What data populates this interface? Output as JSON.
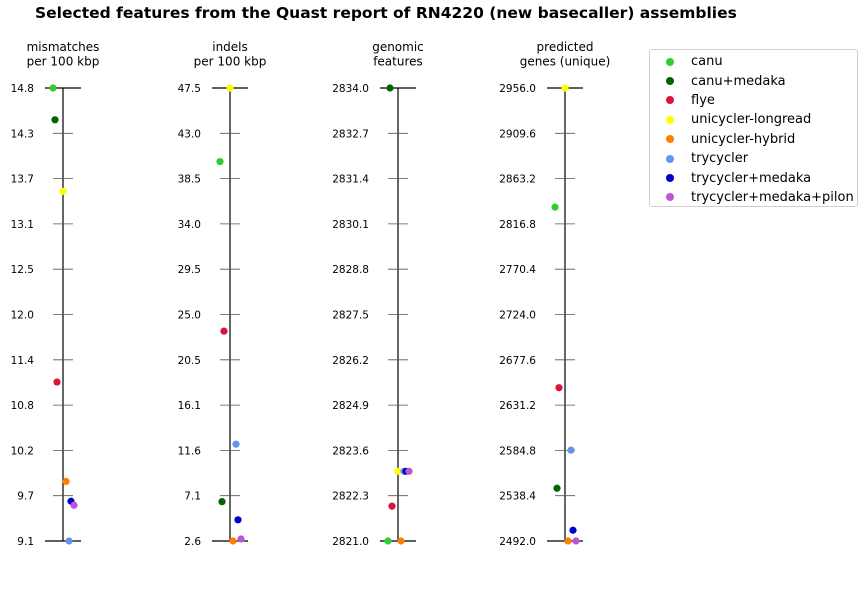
{
  "title": "Selected features from the Quast report of RN4220 (new basecaller) assemblies",
  "legend": {
    "items": [
      {
        "name": "canu",
        "color": "#32cd32"
      },
      {
        "name": "canu+medaka",
        "color": "#006400"
      },
      {
        "name": "flye",
        "color": "#dc143c"
      },
      {
        "name": "unicycler-longread",
        "color": "#ffff00"
      },
      {
        "name": "unicycler-hybrid",
        "color": "#ff7f00"
      },
      {
        "name": "trycycler",
        "color": "#6495ed"
      },
      {
        "name": "trycycler+medaka",
        "color": "#0000cd"
      },
      {
        "name": "trycycler+medaka+pilon",
        "color": "#ba55d3"
      }
    ]
  },
  "chart_data": [
    {
      "type": "scatter",
      "title_lines": [
        "mismatches",
        "per 100 kbp"
      ],
      "ylim": [
        9.1,
        14.8
      ],
      "tick_labels": [
        "9.1",
        "9.7",
        "10.2",
        "10.8",
        "11.4",
        "12.0",
        "12.5",
        "13.1",
        "13.7",
        "14.3",
        "14.8"
      ],
      "series": [
        {
          "name": "canu",
          "value": 14.8
        },
        {
          "name": "canu+medaka",
          "value": 14.4
        },
        {
          "name": "flye",
          "value": 11.1
        },
        {
          "name": "unicycler-longread",
          "value": 13.5
        },
        {
          "name": "unicycler-hybrid",
          "value": 9.85
        },
        {
          "name": "trycycler",
          "value": 9.1
        },
        {
          "name": "trycycler+medaka",
          "value": 9.6
        },
        {
          "name": "trycycler+medaka+pilon",
          "value": 9.55
        }
      ]
    },
    {
      "type": "scatter",
      "title_lines": [
        "indels",
        "per 100 kbp"
      ],
      "ylim": [
        2.6,
        47.5
      ],
      "tick_labels": [
        "2.6",
        "7.1",
        "11.6",
        "16.1",
        "20.5",
        "25.0",
        "29.5",
        "34.0",
        "38.5",
        "43.0",
        "47.5"
      ],
      "series": [
        {
          "name": "canu",
          "value": 40.2
        },
        {
          "name": "canu+medaka",
          "value": 6.5
        },
        {
          "name": "flye",
          "value": 23.4
        },
        {
          "name": "unicycler-longread",
          "value": 47.5
        },
        {
          "name": "unicycler-hybrid",
          "value": 2.6
        },
        {
          "name": "trycycler",
          "value": 12.2
        },
        {
          "name": "trycycler+medaka",
          "value": 4.7
        },
        {
          "name": "trycycler+medaka+pilon",
          "value": 2.8
        }
      ]
    },
    {
      "type": "scatter",
      "title_lines": [
        "genomic",
        "features"
      ],
      "ylim": [
        2821.0,
        2834.0
      ],
      "tick_labels": [
        "2821.0",
        "2822.3",
        "2823.6",
        "2824.9",
        "2826.2",
        "2827.5",
        "2828.8",
        "2830.1",
        "2831.4",
        "2832.7",
        "2834.0"
      ],
      "series": [
        {
          "name": "canu",
          "value": 2821.0
        },
        {
          "name": "canu+medaka",
          "value": 2834.0
        },
        {
          "name": "flye",
          "value": 2822.0
        },
        {
          "name": "unicycler-longread",
          "value": 2823.0
        },
        {
          "name": "unicycler-hybrid",
          "value": 2821.0
        },
        {
          "name": "trycycler",
          "value": 2823.0
        },
        {
          "name": "trycycler+medaka",
          "value": 2823.0
        },
        {
          "name": "trycycler+medaka+pilon",
          "value": 2823.0
        }
      ]
    },
    {
      "type": "scatter",
      "title_lines": [
        "predicted",
        "genes (unique)"
      ],
      "ylim": [
        2492.0,
        2956.0
      ],
      "tick_labels": [
        "2492.0",
        "2538.4",
        "2584.8",
        "2631.2",
        "2677.6",
        "2724.0",
        "2770.4",
        "2816.8",
        "2863.2",
        "2909.6",
        "2956.0"
      ],
      "series": [
        {
          "name": "canu",
          "value": 2834
        },
        {
          "name": "canu+medaka",
          "value": 2546
        },
        {
          "name": "flye",
          "value": 2649
        },
        {
          "name": "unicycler-longread",
          "value": 2956
        },
        {
          "name": "unicycler-hybrid",
          "value": 2492
        },
        {
          "name": "trycycler",
          "value": 2585
        },
        {
          "name": "trycycler+medaka",
          "value": 2503
        },
        {
          "name": "trycycler+medaka+pilon",
          "value": 2492
        }
      ]
    }
  ]
}
